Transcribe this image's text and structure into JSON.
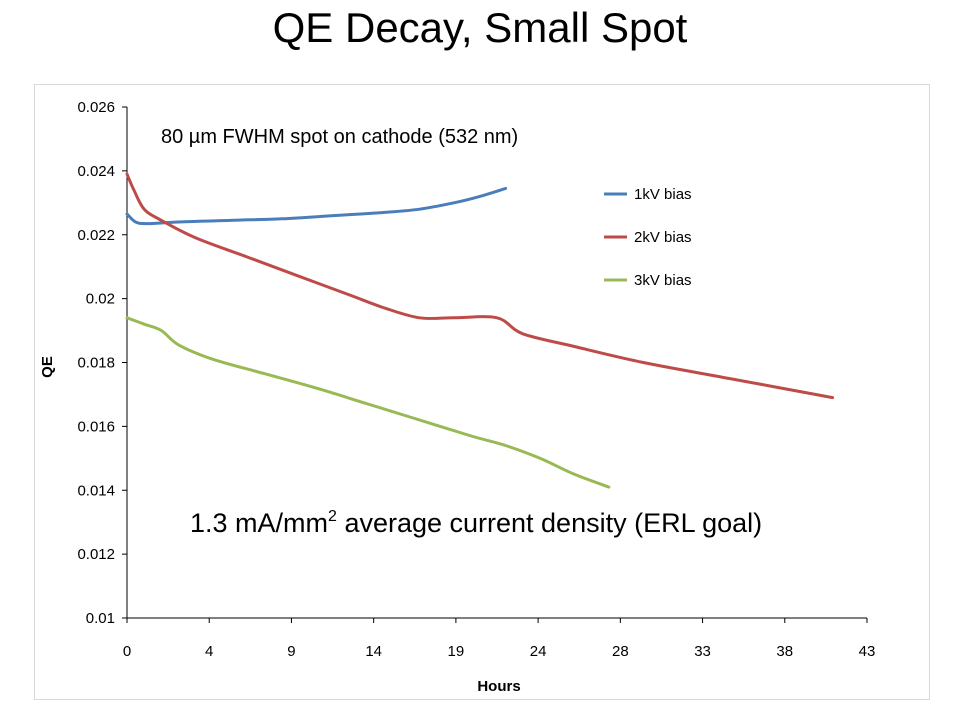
{
  "slide": {
    "title": "QE Decay, Small Spot"
  },
  "chart_data": {
    "type": "line",
    "title": "",
    "xlabel": "Hours",
    "ylabel": "QE",
    "xlim": [
      0,
      43
    ],
    "ylim": [
      0.01,
      0.026
    ],
    "x_ticks": [
      "0",
      "4",
      "9",
      "14",
      "19",
      "24",
      "28",
      "33",
      "38",
      "43"
    ],
    "y_ticks": [
      "0.026",
      "0.024",
      "0.022",
      "0.02",
      "0.018",
      "0.016",
      "0.014",
      "0.012",
      "0.01"
    ],
    "grid": false,
    "legend_position": "right",
    "annotations": {
      "spot": "80 µm FWHM spot on cathode (532 nm)",
      "density_prefix": "1.3 mA/mm",
      "density_sup": "2",
      "density_suffix": " average current density (ERL goal)"
    },
    "series": [
      {
        "name": "1kV bias",
        "color": "#4a7ebb",
        "points": [
          [
            0,
            0.02265
          ],
          [
            0.5,
            0.0224
          ],
          [
            1.2,
            0.02235
          ],
          [
            3,
            0.0224
          ],
          [
            6,
            0.02245
          ],
          [
            9,
            0.0225
          ],
          [
            12,
            0.0226
          ],
          [
            15,
            0.0227
          ],
          [
            17,
            0.0228
          ],
          [
            19,
            0.023
          ],
          [
            20.5,
            0.0232
          ],
          [
            22,
            0.02345
          ]
        ]
      },
      {
        "name": "2kV bias",
        "color": "#be4b48",
        "points": [
          [
            0,
            0.0239
          ],
          [
            0.4,
            0.0234
          ],
          [
            1,
            0.0228
          ],
          [
            2,
            0.02245
          ],
          [
            4,
            0.0219
          ],
          [
            7,
            0.0213
          ],
          [
            10,
            0.0207
          ],
          [
            13,
            0.0201
          ],
          [
            15,
            0.0197
          ],
          [
            17,
            0.0194
          ],
          [
            19,
            0.0194
          ],
          [
            21.5,
            0.0194
          ],
          [
            23,
            0.0189
          ],
          [
            26,
            0.0185
          ],
          [
            30,
            0.018
          ],
          [
            35,
            0.0175
          ],
          [
            41,
            0.0169
          ]
        ]
      },
      {
        "name": "3kV bias",
        "color": "#98b954",
        "points": [
          [
            0,
            0.0194
          ],
          [
            1,
            0.0192
          ],
          [
            2,
            0.019
          ],
          [
            3,
            0.01855
          ],
          [
            5,
            0.0181
          ],
          [
            8,
            0.01765
          ],
          [
            11,
            0.0172
          ],
          [
            14,
            0.0167
          ],
          [
            17,
            0.0162
          ],
          [
            20,
            0.0157
          ],
          [
            22,
            0.0154
          ],
          [
            24,
            0.015
          ],
          [
            26,
            0.0145
          ],
          [
            28,
            0.0141
          ]
        ]
      }
    ]
  }
}
